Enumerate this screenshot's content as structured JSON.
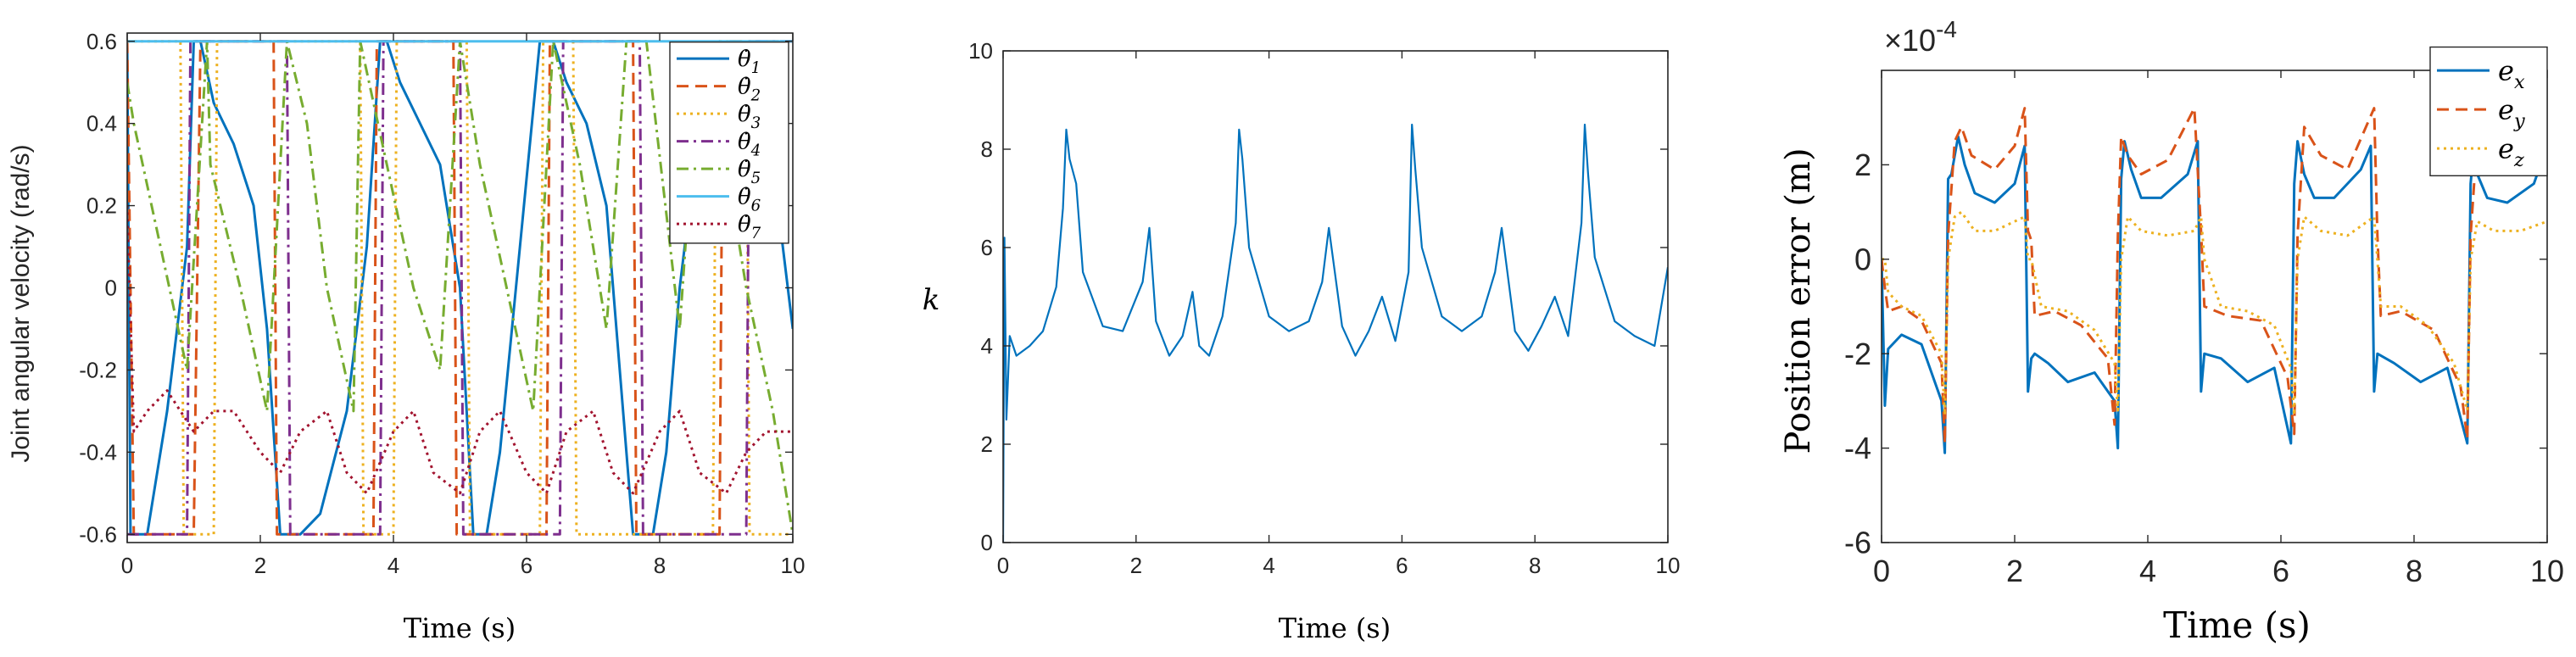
{
  "chart_data": [
    {
      "type": "line",
      "xlabel": "Time (s)",
      "ylabel": "Joint angular velocity (rad/s)",
      "xlim": [
        0,
        10
      ],
      "ylim": [
        -0.62,
        0.62
      ],
      "xticks": [
        "0",
        "2",
        "4",
        "6",
        "8",
        "10"
      ],
      "yticks": [
        "-0.6",
        "-0.4",
        "-0.2",
        "0",
        "0.2",
        "0.4",
        "0.6"
      ],
      "legend_position": "top-right",
      "grid": false,
      "series": [
        {
          "name": "θ̇1",
          "sub": "1",
          "color": "#0072BD",
          "dash": "solid",
          "x": [
            0,
            0.05,
            0.3,
            0.6,
            0.9,
            1.0,
            1.1,
            1.3,
            1.6,
            1.9,
            2.1,
            2.3,
            2.6,
            2.9,
            3.3,
            3.6,
            3.8,
            3.9,
            4.1,
            4.4,
            4.7,
            5.0,
            5.2,
            5.4,
            5.6,
            5.9,
            6.2,
            6.4,
            6.6,
            6.9,
            7.2,
            7.6,
            7.9,
            8.1,
            8.3,
            8.6,
            8.9,
            9.1,
            9.4,
            9.7,
            10
          ],
          "y": [
            0.6,
            -0.6,
            -0.6,
            -0.3,
            0.1,
            0.6,
            0.6,
            0.45,
            0.35,
            0.2,
            -0.1,
            -0.6,
            -0.6,
            -0.55,
            -0.3,
            0.1,
            0.6,
            0.6,
            0.5,
            0.4,
            0.3,
            0.0,
            -0.6,
            -0.6,
            -0.4,
            0.1,
            0.6,
            0.6,
            0.5,
            0.4,
            0.2,
            -0.6,
            -0.6,
            -0.4,
            0.0,
            0.4,
            0.6,
            0.45,
            0.35,
            0.3,
            -0.1
          ]
        },
        {
          "name": "θ̇2",
          "sub": "2",
          "color": "#D95319",
          "dash": "dashed",
          "x": [
            0,
            0.1,
            0.3,
            1.0,
            1.1,
            2.2,
            2.25,
            3.7,
            3.75,
            4.9,
            4.95,
            6.3,
            6.35,
            7.6,
            7.65,
            8.9,
            8.95,
            10
          ],
          "y": [
            0.6,
            -0.6,
            -0.6,
            -0.6,
            0.6,
            0.6,
            -0.6,
            -0.6,
            0.6,
            0.6,
            -0.6,
            -0.6,
            0.6,
            0.6,
            -0.6,
            -0.6,
            0.6,
            0.6
          ]
        },
        {
          "name": "θ̇3",
          "sub": "3",
          "color": "#EDB120",
          "dash": "dotted",
          "x": [
            0,
            0.8,
            0.85,
            1.3,
            1.35,
            3.5,
            3.55,
            4.0,
            4.05,
            5.1,
            5.15,
            6.2,
            6.25,
            6.7,
            6.75,
            8.8,
            8.85,
            9.3,
            9.35,
            10
          ],
          "y": [
            0.6,
            0.6,
            -0.6,
            -0.6,
            0.6,
            0.6,
            -0.6,
            -0.6,
            0.6,
            0.6,
            -0.6,
            -0.6,
            0.6,
            0.6,
            -0.6,
            -0.6,
            0.6,
            0.6,
            -0.6,
            -0.6
          ]
        },
        {
          "name": "θ̇4",
          "sub": "4",
          "color": "#7E2F8E",
          "dash": "dashdot",
          "x": [
            0,
            0.9,
            0.95,
            2.4,
            2.45,
            3.8,
            3.85,
            5.0,
            5.05,
            6.5,
            6.55,
            7.7,
            7.75,
            9.3,
            9.35,
            10
          ],
          "y": [
            -0.6,
            -0.6,
            0.6,
            0.6,
            -0.6,
            -0.6,
            0.6,
            0.6,
            -0.6,
            -0.6,
            0.6,
            0.6,
            -0.6,
            -0.6,
            0.6,
            0.6
          ]
        },
        {
          "name": "θ̇5",
          "sub": "5",
          "color": "#77AC30",
          "dash": "dashdot",
          "x": [
            0,
            0.1,
            0.5,
            0.9,
            1.2,
            1.25,
            1.7,
            2.1,
            2.4,
            2.7,
            3.0,
            3.4,
            3.5,
            3.9,
            4.3,
            4.7,
            5.0,
            5.3,
            5.7,
            6.1,
            6.4,
            6.8,
            7.2,
            7.5,
            7.8,
            8.3,
            8.6,
            9.0,
            9.3,
            9.7,
            10
          ],
          "y": [
            0.5,
            0.4,
            0.1,
            -0.2,
            0.6,
            0.3,
            0.0,
            -0.3,
            0.6,
            0.4,
            0.0,
            -0.3,
            0.6,
            0.3,
            0.0,
            -0.2,
            0.6,
            0.3,
            0.0,
            -0.3,
            0.6,
            0.3,
            -0.1,
            0.6,
            0.6,
            -0.1,
            0.6,
            0.3,
            0.0,
            -0.3,
            -0.6
          ]
        },
        {
          "name": "θ̇6",
          "sub": "6",
          "color": "#4DBEEE",
          "dash": "solid",
          "x": [
            0,
            0.1,
            1.0,
            2.0,
            3.0,
            4.0,
            5.0,
            6.0,
            7.0,
            8.0,
            9.0,
            10
          ],
          "y": [
            0.6,
            0.6,
            0.6,
            0.6,
            0.6,
            0.6,
            0.6,
            0.6,
            0.6,
            0.6,
            0.6,
            0.6
          ]
        },
        {
          "name": "θ̇7",
          "sub": "7",
          "color": "#A2142F",
          "dash": "dotted",
          "x": [
            0,
            0.1,
            0.3,
            0.6,
            1.0,
            1.3,
            1.6,
            2.0,
            2.3,
            2.6,
            3.0,
            3.3,
            3.6,
            4.0,
            4.3,
            4.6,
            5.0,
            5.3,
            5.6,
            6.0,
            6.3,
            6.6,
            7.0,
            7.3,
            7.6,
            8.0,
            8.3,
            8.6,
            9.0,
            9.3,
            9.6,
            10
          ],
          "y": [
            0.2,
            -0.35,
            -0.3,
            -0.25,
            -0.35,
            -0.3,
            -0.3,
            -0.4,
            -0.45,
            -0.35,
            -0.3,
            -0.45,
            -0.5,
            -0.35,
            -0.3,
            -0.45,
            -0.5,
            -0.35,
            -0.3,
            -0.45,
            -0.5,
            -0.35,
            -0.3,
            -0.45,
            -0.5,
            -0.35,
            -0.3,
            -0.45,
            -0.5,
            -0.4,
            -0.35,
            -0.35
          ]
        }
      ]
    },
    {
      "type": "line",
      "xlabel": "Time (s)",
      "ylabel": "k",
      "xlim": [
        0,
        10
      ],
      "ylim": [
        0,
        10
      ],
      "xticks": [
        "0",
        "2",
        "4",
        "6",
        "8",
        "10"
      ],
      "yticks": [
        "0",
        "2",
        "4",
        "6",
        "8",
        "10"
      ],
      "grid": false,
      "series": [
        {
          "color": "#0072BD",
          "x": [
            0,
            0.02,
            0.05,
            0.1,
            0.2,
            0.4,
            0.6,
            0.8,
            0.9,
            0.95,
            1.0,
            1.1,
            1.2,
            1.5,
            1.8,
            2.1,
            2.2,
            2.3,
            2.5,
            2.7,
            2.85,
            2.95,
            3.1,
            3.3,
            3.5,
            3.55,
            3.6,
            3.7,
            4.0,
            4.3,
            4.6,
            4.8,
            4.9,
            5.1,
            5.3,
            5.5,
            5.7,
            5.9,
            6.1,
            6.15,
            6.2,
            6.3,
            6.6,
            6.9,
            7.2,
            7.4,
            7.5,
            7.7,
            7.9,
            8.1,
            8.3,
            8.5,
            8.7,
            8.75,
            8.8,
            8.9,
            9.2,
            9.5,
            9.8,
            10
          ],
          "y": [
            0,
            6.2,
            2.5,
            4.2,
            3.8,
            4.0,
            4.3,
            5.2,
            6.8,
            8.4,
            7.8,
            7.3,
            5.5,
            4.4,
            4.3,
            5.3,
            6.4,
            4.5,
            3.8,
            4.2,
            5.1,
            4.0,
            3.8,
            4.6,
            6.5,
            8.4,
            7.8,
            6.0,
            4.6,
            4.3,
            4.5,
            5.3,
            6.4,
            4.4,
            3.8,
            4.3,
            5.0,
            4.1,
            5.5,
            8.5,
            7.6,
            6.0,
            4.6,
            4.3,
            4.6,
            5.5,
            6.4,
            4.3,
            3.9,
            4.4,
            5.0,
            4.2,
            6.5,
            8.5,
            7.5,
            5.8,
            4.5,
            4.2,
            4.0,
            5.6
          ]
        }
      ]
    },
    {
      "type": "line",
      "xlabel": "Time (s)",
      "ylabel": "Position error (m)",
      "exponent_label": "×10",
      "exponent_power": "-4",
      "xlim": [
        0,
        10
      ],
      "ylim": [
        -6,
        4
      ],
      "xticks": [
        "0",
        "2",
        "4",
        "6",
        "8",
        "10"
      ],
      "yticks": [
        "-6",
        "-4",
        "-2",
        "0",
        "2"
      ],
      "legend_position": "top-right",
      "grid": false,
      "series": [
        {
          "name": "e",
          "sub": "x",
          "color": "#0072BD",
          "dash": "solid",
          "x": [
            0,
            0.05,
            0.1,
            0.3,
            0.6,
            0.9,
            0.95,
            1.0,
            1.05,
            1.15,
            1.25,
            1.4,
            1.7,
            2.0,
            2.15,
            2.2,
            2.25,
            2.3,
            2.5,
            2.8,
            3.2,
            3.5,
            3.55,
            3.6,
            3.65,
            3.75,
            3.9,
            4.2,
            4.6,
            4.75,
            4.8,
            4.85,
            5.1,
            5.5,
            5.9,
            6.15,
            6.2,
            6.25,
            6.35,
            6.5,
            6.8,
            7.2,
            7.35,
            7.4,
            7.45,
            7.7,
            8.1,
            8.5,
            8.8,
            8.85,
            8.9,
            8.95,
            9.1,
            9.4,
            9.8,
            10
          ],
          "y": [
            0,
            -3.1,
            -1.9,
            -1.6,
            -1.8,
            -3.0,
            -4.1,
            1.7,
            1.8,
            2.6,
            2.0,
            1.4,
            1.2,
            1.6,
            2.4,
            -2.8,
            -2.1,
            -2.0,
            -2.2,
            -2.6,
            -2.4,
            -3.0,
            -4.0,
            1.7,
            2.5,
            1.9,
            1.3,
            1.3,
            1.8,
            2.5,
            -2.8,
            -2.0,
            -2.1,
            -2.6,
            -2.3,
            -3.9,
            1.6,
            2.5,
            1.8,
            1.3,
            1.3,
            1.9,
            2.4,
            -2.8,
            -2.0,
            -2.2,
            -2.6,
            -2.3,
            -3.9,
            1.6,
            2.4,
            1.8,
            1.3,
            1.2,
            1.6,
            2.4
          ]
        },
        {
          "name": "e",
          "sub": "y",
          "color": "#D95319",
          "dash": "dashed",
          "x": [
            0,
            0.05,
            0.1,
            0.3,
            0.6,
            0.9,
            0.95,
            1.0,
            1.1,
            1.2,
            1.35,
            1.7,
            2.0,
            2.15,
            2.2,
            2.25,
            2.3,
            2.6,
            3.0,
            3.4,
            3.5,
            3.55,
            3.6,
            3.7,
            3.9,
            4.3,
            4.7,
            4.8,
            4.85,
            5.2,
            5.7,
            6.1,
            6.2,
            6.25,
            6.35,
            6.6,
            7.0,
            7.4,
            7.45,
            7.5,
            7.8,
            8.3,
            8.7,
            8.8,
            8.85,
            8.95,
            9.2,
            9.6,
            10
          ],
          "y": [
            0,
            -0.6,
            -1.1,
            -1.0,
            -1.3,
            -2.2,
            -3.9,
            0.5,
            2.5,
            2.8,
            2.2,
            1.9,
            2.4,
            3.2,
            0.6,
            0.4,
            -1.2,
            -1.1,
            -1.4,
            -2.1,
            -3.5,
            0.5,
            2.6,
            2.2,
            1.8,
            2.1,
            3.2,
            0.6,
            -1.0,
            -1.2,
            -1.3,
            -2.5,
            -3.7,
            0.5,
            2.8,
            2.2,
            1.9,
            3.2,
            0.5,
            -1.2,
            -1.1,
            -1.5,
            -2.7,
            -3.8,
            0.5,
            2.6,
            2.0,
            2.0,
            2.5
          ]
        },
        {
          "name": "e",
          "sub": "z",
          "color": "#EDB120",
          "dash": "dotted",
          "x": [
            0,
            0.05,
            0.1,
            0.3,
            0.6,
            0.9,
            0.95,
            1.0,
            1.1,
            1.2,
            1.4,
            1.7,
            2.0,
            2.15,
            2.2,
            2.25,
            2.4,
            2.8,
            3.2,
            3.5,
            3.55,
            3.6,
            3.7,
            3.9,
            4.3,
            4.7,
            4.8,
            4.85,
            5.1,
            5.5,
            5.9,
            6.15,
            6.2,
            6.25,
            6.35,
            6.6,
            7.0,
            7.4,
            7.45,
            7.5,
            7.8,
            8.2,
            8.6,
            8.8,
            8.85,
            8.95,
            9.2,
            9.6,
            10
          ],
          "y": [
            0,
            0,
            -0.7,
            -1.0,
            -1.2,
            -2.0,
            -3.3,
            0,
            0.9,
            1.0,
            0.6,
            0.6,
            0.8,
            0.9,
            0,
            0,
            -1.0,
            -1.1,
            -1.5,
            -2.2,
            -3.2,
            0,
            0.9,
            0.6,
            0.5,
            0.6,
            0.9,
            0,
            -1.0,
            -1.1,
            -1.4,
            -2.3,
            -3.3,
            0,
            0.9,
            0.6,
            0.5,
            0.9,
            0,
            -1.0,
            -1.0,
            -1.4,
            -2.2,
            -3.2,
            0,
            0.8,
            0.6,
            0.6,
            0.8
          ]
        }
      ]
    }
  ]
}
